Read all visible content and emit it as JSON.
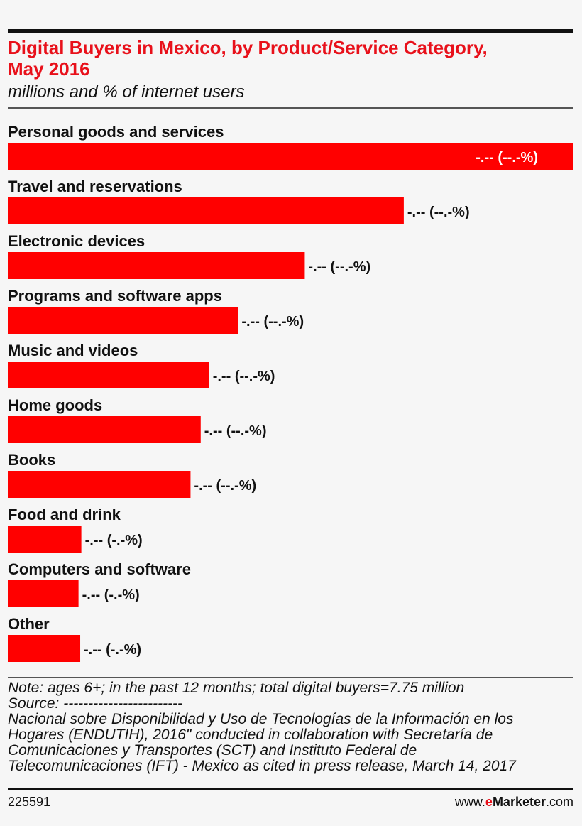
{
  "chart_data": {
    "type": "bar",
    "orientation": "horizontal",
    "title": "Digital Buyers in Mexico, by Product/Service Category, May 2016",
    "subtitle": "millions and % of internet users",
    "categories": [
      "Personal goods and services",
      "Travel and reservations",
      "Electronic devices",
      "Programs and software apps",
      "Music and videos",
      "Home goods",
      "Books",
      "Food and drink",
      "Computers and software",
      "Other"
    ],
    "values": [
      100,
      70,
      52.5,
      40.7,
      35.6,
      34.1,
      32.3,
      13,
      12.5,
      12.8
    ],
    "value_labels": [
      "-.-- (--.-%)",
      "-.-- (--.-%)",
      "-.-- (--.-%)",
      "-.-- (--.-%)",
      "-.-- (--.-%)",
      "-.-- (--.-%)",
      "-.-- (--.-%)",
      "-.-- (-.-%)",
      "-.-- (-.-%)",
      "-.-- (-.-%)"
    ],
    "bar_color": "#ff0000",
    "xlim": [
      0,
      100
    ]
  },
  "title_lines": [
    "Digital Buyers in Mexico, by Product/Service Category,",
    "May 2016"
  ],
  "subtitle": "millions and % of internet users",
  "note_lines": [
    "Note: ages 6+; in the past 12 months; total digital buyers=7.75 million",
    "Source: ------------------------",
    "Nacional sobre Disponibilidad y Uso de Tecnologías de la Información en los",
    "Hogares (ENDUTIH), 2016\" conducted in collaboration with Secretaría de",
    "Comunicaciones y Transportes (SCT) and Instituto Federal de",
    "Telecomunicaciones (IFT) - Mexico as cited in press release, March 14, 2017"
  ],
  "footer": {
    "id": "225591",
    "brand_prefix": "www.",
    "brand_e": "e",
    "brand_name": "Marketer",
    "brand_suffix": ".com"
  }
}
